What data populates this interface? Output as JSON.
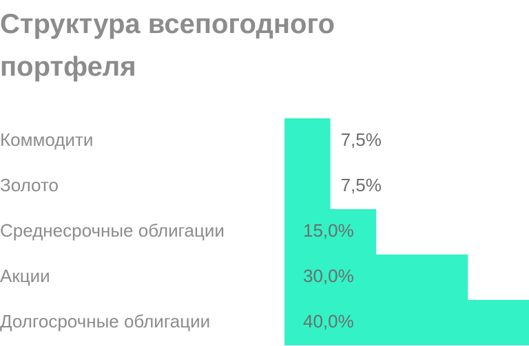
{
  "chart_data": {
    "type": "bar",
    "orientation": "horizontal",
    "title": "Структура всепогодного портфеля",
    "categories": [
      "Коммодити",
      "Золото",
      "Среднесрочные облигации",
      "Акции",
      "Долгосрочные облигации"
    ],
    "values": [
      7.5,
      7.5,
      15,
      30,
      40
    ],
    "value_labels": [
      "7,5%",
      "7,5%",
      "15,0%",
      "30,0%",
      "40,0%"
    ],
    "color": "#32f2c6"
  }
}
